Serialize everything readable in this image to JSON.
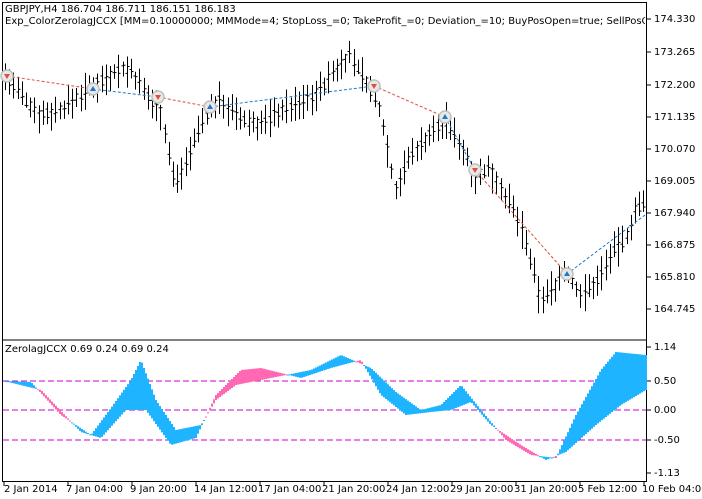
{
  "header": {
    "symbol_info": "GBPJPY,H4  186.704 186.711 186.151 186.183",
    "expert_info": "Exp_ColorZerolagJCCX [MM=0.10000000; MMMode=4; StopLoss_=0; TakeProfit_=0; Deviation_=10; BuyPosOpen=true; SellPosOpen=true; BuyPosClos"
  },
  "price_axis": {
    "labels": [
      "174.330",
      "173.265",
      "172.200",
      "171.135",
      "170.070",
      "169.005",
      "167.940",
      "166.875",
      "165.810",
      "164.745"
    ]
  },
  "indicator": {
    "title": "ZerolagJCCX 0.69 0.24 0.69 0.24",
    "axis_labels": [
      "1.14",
      "0.50",
      "0.00",
      "-0.50",
      "-1.13"
    ],
    "colors": {
      "up": "#1EB4FF",
      "down": "#FF69B4",
      "level_line": "#CC00CC"
    }
  },
  "time_axis": {
    "labels": [
      "2 Jan 2014",
      "7 Jan 04:00",
      "9 Jan 20:00",
      "14 Jan 12:00",
      "17 Jan 04:00",
      "21 Jan 20:00",
      "24 Jan 12:00",
      "29 Jan 20:00",
      "31 Jan 20:00",
      "5 Feb 12:00",
      "10 Feb 04:00"
    ]
  },
  "colors": {
    "buy_line": "#1E78C8",
    "sell_line": "#E0503C",
    "marker_ring": "#C0C0C0"
  }
}
